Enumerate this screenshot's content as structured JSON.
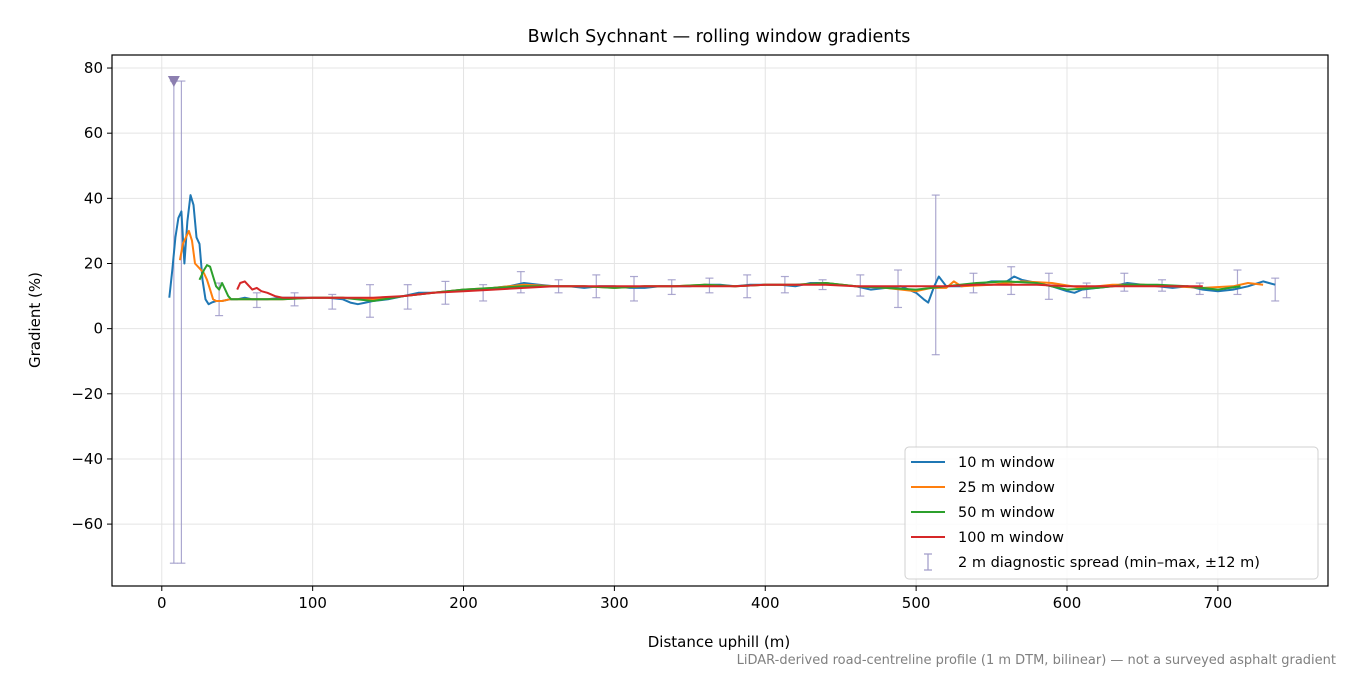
{
  "chart_data": {
    "type": "line",
    "title": "Bwlch Sychnant — rolling window gradients",
    "xlabel": "Distance uphill (m)",
    "ylabel": "Gradient (%)",
    "xlim": [
      -33,
      773
    ],
    "ylim": [
      -79,
      84
    ],
    "xticks": [
      0,
      100,
      200,
      300,
      400,
      500,
      600,
      700
    ],
    "yticks": [
      -60,
      -40,
      -20,
      0,
      20,
      40,
      60,
      80
    ],
    "grid": true,
    "legend_position": "lower right",
    "series": [
      {
        "name": "10 m window",
        "color": "#1f77b4",
        "x": [
          5,
          7,
          9,
          11,
          13,
          15,
          17,
          19,
          21,
          23,
          25,
          27,
          29,
          31,
          33,
          36,
          40,
          45,
          50,
          55,
          60,
          70,
          80,
          90,
          100,
          110,
          120,
          125,
          130,
          135,
          140,
          150,
          160,
          170,
          180,
          190,
          200,
          210,
          220,
          230,
          240,
          250,
          260,
          270,
          280,
          290,
          300,
          310,
          320,
          330,
          340,
          350,
          360,
          370,
          380,
          390,
          400,
          410,
          420,
          430,
          440,
          450,
          460,
          470,
          480,
          490,
          500,
          505,
          508,
          512,
          515,
          520,
          530,
          540,
          550,
          560,
          565,
          570,
          580,
          590,
          600,
          605,
          610,
          620,
          630,
          640,
          650,
          660,
          670,
          680,
          690,
          700,
          710,
          720,
          730,
          738
        ],
        "y": [
          9.5,
          18,
          28,
          34,
          36,
          20,
          33,
          41,
          38,
          28,
          26,
          15,
          9,
          7.5,
          8,
          8.5,
          8.5,
          9,
          9,
          9.5,
          9,
          9,
          9.5,
          9.5,
          9.5,
          9.5,
          9,
          8,
          7.5,
          8,
          8.5,
          9,
          10,
          11,
          11,
          11.5,
          12,
          12,
          12.5,
          13,
          14,
          13.5,
          13,
          13,
          12.5,
          13,
          13,
          12.5,
          12.5,
          13,
          13,
          13,
          13.5,
          13.5,
          13,
          13.5,
          13.5,
          13.5,
          13,
          14,
          14,
          13.5,
          13,
          12,
          12.5,
          13,
          11,
          9,
          8,
          13,
          16,
          13,
          13,
          13.5,
          14.5,
          14.5,
          16,
          15,
          14,
          13,
          11.5,
          11,
          12,
          12.5,
          13,
          14,
          13.5,
          13,
          12.5,
          13,
          12,
          11.5,
          12,
          13,
          14.5,
          13.5
        ]
      },
      {
        "name": "25 m window",
        "color": "#ff7f0e",
        "x": [
          12,
          14,
          16,
          18,
          20,
          22,
          24,
          26,
          28,
          30,
          32,
          34,
          36,
          40,
          45,
          50,
          60,
          80,
          100,
          120,
          140,
          160,
          180,
          200,
          220,
          240,
          260,
          280,
          300,
          320,
          340,
          360,
          380,
          400,
          420,
          440,
          460,
          480,
          500,
          510,
          520,
          525,
          530,
          550,
          570,
          590,
          610,
          630,
          650,
          670,
          690,
          710,
          720,
          730
        ],
        "y": [
          21,
          26,
          28,
          30,
          27,
          20,
          19,
          18,
          17,
          15,
          12,
          9,
          8.5,
          8.5,
          9,
          9,
          9,
          9,
          9.5,
          9.5,
          9,
          10,
          11,
          12,
          12.5,
          13.5,
          13,
          13,
          12.5,
          13,
          13,
          13.5,
          13,
          13.5,
          13.5,
          14,
          13,
          12.5,
          11.5,
          12.5,
          12.5,
          14.5,
          13,
          13.5,
          14.5,
          14,
          12.5,
          13.5,
          13.5,
          13,
          12.5,
          13,
          14,
          13.5
        ]
      },
      {
        "name": "50 m window",
        "color": "#2ca02c",
        "x": [
          25,
          28,
          30,
          32,
          34,
          36,
          38,
          40,
          42,
          44,
          46,
          50,
          60,
          80,
          100,
          120,
          140,
          160,
          180,
          200,
          220,
          240,
          260,
          280,
          300,
          320,
          340,
          360,
          380,
          400,
          420,
          440,
          460,
          480,
          500,
          520,
          540,
          560,
          580,
          600,
          620,
          640,
          660,
          680,
          700,
          715
        ],
        "y": [
          15,
          18,
          19.5,
          19,
          16,
          13,
          12,
          14,
          12,
          10,
          9,
          9,
          9,
          9,
          9.5,
          9.5,
          8.5,
          10,
          11,
          12,
          12.5,
          13,
          13,
          13,
          12.5,
          13,
          13,
          13.5,
          13,
          13.5,
          13.5,
          14,
          13,
          12.5,
          12,
          13,
          14,
          14.5,
          14,
          12,
          12.5,
          13.5,
          13.5,
          13,
          12,
          13
        ]
      },
      {
        "name": "100 m window",
        "color": "#d62728",
        "x": [
          50,
          52,
          55,
          58,
          60,
          63,
          66,
          70,
          75,
          80,
          90,
          100,
          120,
          140,
          160,
          180,
          200,
          220,
          240,
          260,
          280,
          300,
          320,
          340,
          360,
          380,
          400,
          420,
          440,
          460,
          480,
          500,
          520,
          540,
          560,
          580,
          600,
          620,
          640,
          660,
          680,
          690
        ],
        "y": [
          12,
          14,
          14.5,
          13,
          12,
          12.5,
          11.5,
          11,
          10,
          9.5,
          9.5,
          9.5,
          9.5,
          9.5,
          10,
          11,
          11.5,
          12,
          12.5,
          13,
          13,
          13,
          13,
          13,
          13,
          13,
          13.5,
          13.5,
          13.5,
          13,
          13,
          13,
          13,
          13.5,
          13.5,
          13.5,
          13,
          13,
          13,
          13,
          13,
          13
        ]
      },
      {
        "name": "2 m diagnostic spread (min–max, ±12 m)",
        "color": "#9e9ac8",
        "type": "errorbar",
        "points": [
          {
            "x": 8,
            "lo": -72,
            "hi": 76
          },
          {
            "x": 13,
            "lo": -72,
            "hi": 76
          },
          {
            "x": 38,
            "lo": 4,
            "hi": 14
          },
          {
            "x": 63,
            "lo": 6.5,
            "hi": 11
          },
          {
            "x": 88,
            "lo": 7,
            "hi": 11
          },
          {
            "x": 113,
            "lo": 6,
            "hi": 10.5
          },
          {
            "x": 138,
            "lo": 3.5,
            "hi": 13.5
          },
          {
            "x": 163,
            "lo": 6,
            "hi": 13.5
          },
          {
            "x": 188,
            "lo": 7.5,
            "hi": 14.5
          },
          {
            "x": 213,
            "lo": 8.5,
            "hi": 13.5
          },
          {
            "x": 238,
            "lo": 11,
            "hi": 17.5
          },
          {
            "x": 263,
            "lo": 11,
            "hi": 15
          },
          {
            "x": 288,
            "lo": 9.5,
            "hi": 16.5
          },
          {
            "x": 313,
            "lo": 8.5,
            "hi": 16
          },
          {
            "x": 338,
            "lo": 10.5,
            "hi": 15
          },
          {
            "x": 363,
            "lo": 11,
            "hi": 15.5
          },
          {
            "x": 388,
            "lo": 9.5,
            "hi": 16.5
          },
          {
            "x": 413,
            "lo": 11,
            "hi": 16
          },
          {
            "x": 438,
            "lo": 12,
            "hi": 15
          },
          {
            "x": 463,
            "lo": 10,
            "hi": 16.5
          },
          {
            "x": 488,
            "lo": 6.5,
            "hi": 18
          },
          {
            "x": 513,
            "lo": -8,
            "hi": 41
          },
          {
            "x": 538,
            "lo": 11,
            "hi": 17
          },
          {
            "x": 563,
            "lo": 10.5,
            "hi": 19
          },
          {
            "x": 588,
            "lo": 9,
            "hi": 17
          },
          {
            "x": 613,
            "lo": 9.5,
            "hi": 14
          },
          {
            "x": 638,
            "lo": 11.5,
            "hi": 17
          },
          {
            "x": 663,
            "lo": 11.5,
            "hi": 15
          },
          {
            "x": 688,
            "lo": 10.5,
            "hi": 14
          },
          {
            "x": 713,
            "lo": 10.5,
            "hi": 18
          },
          {
            "x": 738,
            "lo": 8.5,
            "hi": 15.5
          }
        ],
        "clip_marker": {
          "x": 8,
          "y": 76
        }
      }
    ]
  },
  "footnote": "LiDAR-derived road-centreline profile (1 m DTM, bilinear) — not a surveyed asphalt gradient"
}
